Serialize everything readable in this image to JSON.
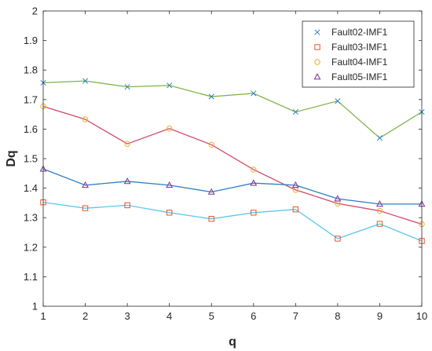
{
  "chart_data": {
    "type": "line",
    "title": "",
    "xlabel": "q",
    "ylabel": "Dq",
    "x": [
      1,
      2,
      3,
      4,
      5,
      6,
      7,
      8,
      9,
      10
    ],
    "xlim": [
      1,
      10
    ],
    "ylim": [
      1,
      2
    ],
    "xticks": [
      "1",
      "2",
      "3",
      "4",
      "5",
      "6",
      "7",
      "8",
      "9",
      "10"
    ],
    "yticks": [
      "1",
      "1.1",
      "1.2",
      "1.3",
      "1.4",
      "1.5",
      "1.6",
      "1.7",
      "1.8",
      "1.9",
      "2"
    ],
    "grid": false,
    "legend_position": "top-right",
    "series": [
      {
        "name": "Fault02-IMF1",
        "marker": "x",
        "line_color": "#7ab648",
        "marker_color": "#2f7fc1",
        "values": [
          1.757,
          1.763,
          1.743,
          1.748,
          1.71,
          1.721,
          1.658,
          1.695,
          1.57,
          1.658
        ]
      },
      {
        "name": "Fault03-IMF1",
        "marker": "square",
        "line_color": "#5bc8ec",
        "marker_color": "#e8542b",
        "values": [
          1.352,
          1.332,
          1.342,
          1.317,
          1.296,
          1.317,
          1.328,
          1.229,
          1.279,
          1.221
        ]
      },
      {
        "name": "Fault04-IMF1",
        "marker": "circle",
        "line_color": "#d04a66",
        "marker_color": "#edb020",
        "values": [
          1.677,
          1.633,
          1.55,
          1.602,
          1.547,
          1.463,
          1.394,
          1.348,
          1.323,
          1.278
        ]
      },
      {
        "name": "Fault05-IMF1",
        "marker": "triangle",
        "line_color": "#2f7fc1",
        "marker_color": "#7e2f8e",
        "values": [
          1.465,
          1.41,
          1.423,
          1.41,
          1.387,
          1.417,
          1.41,
          1.364,
          1.346,
          1.346
        ]
      }
    ]
  }
}
